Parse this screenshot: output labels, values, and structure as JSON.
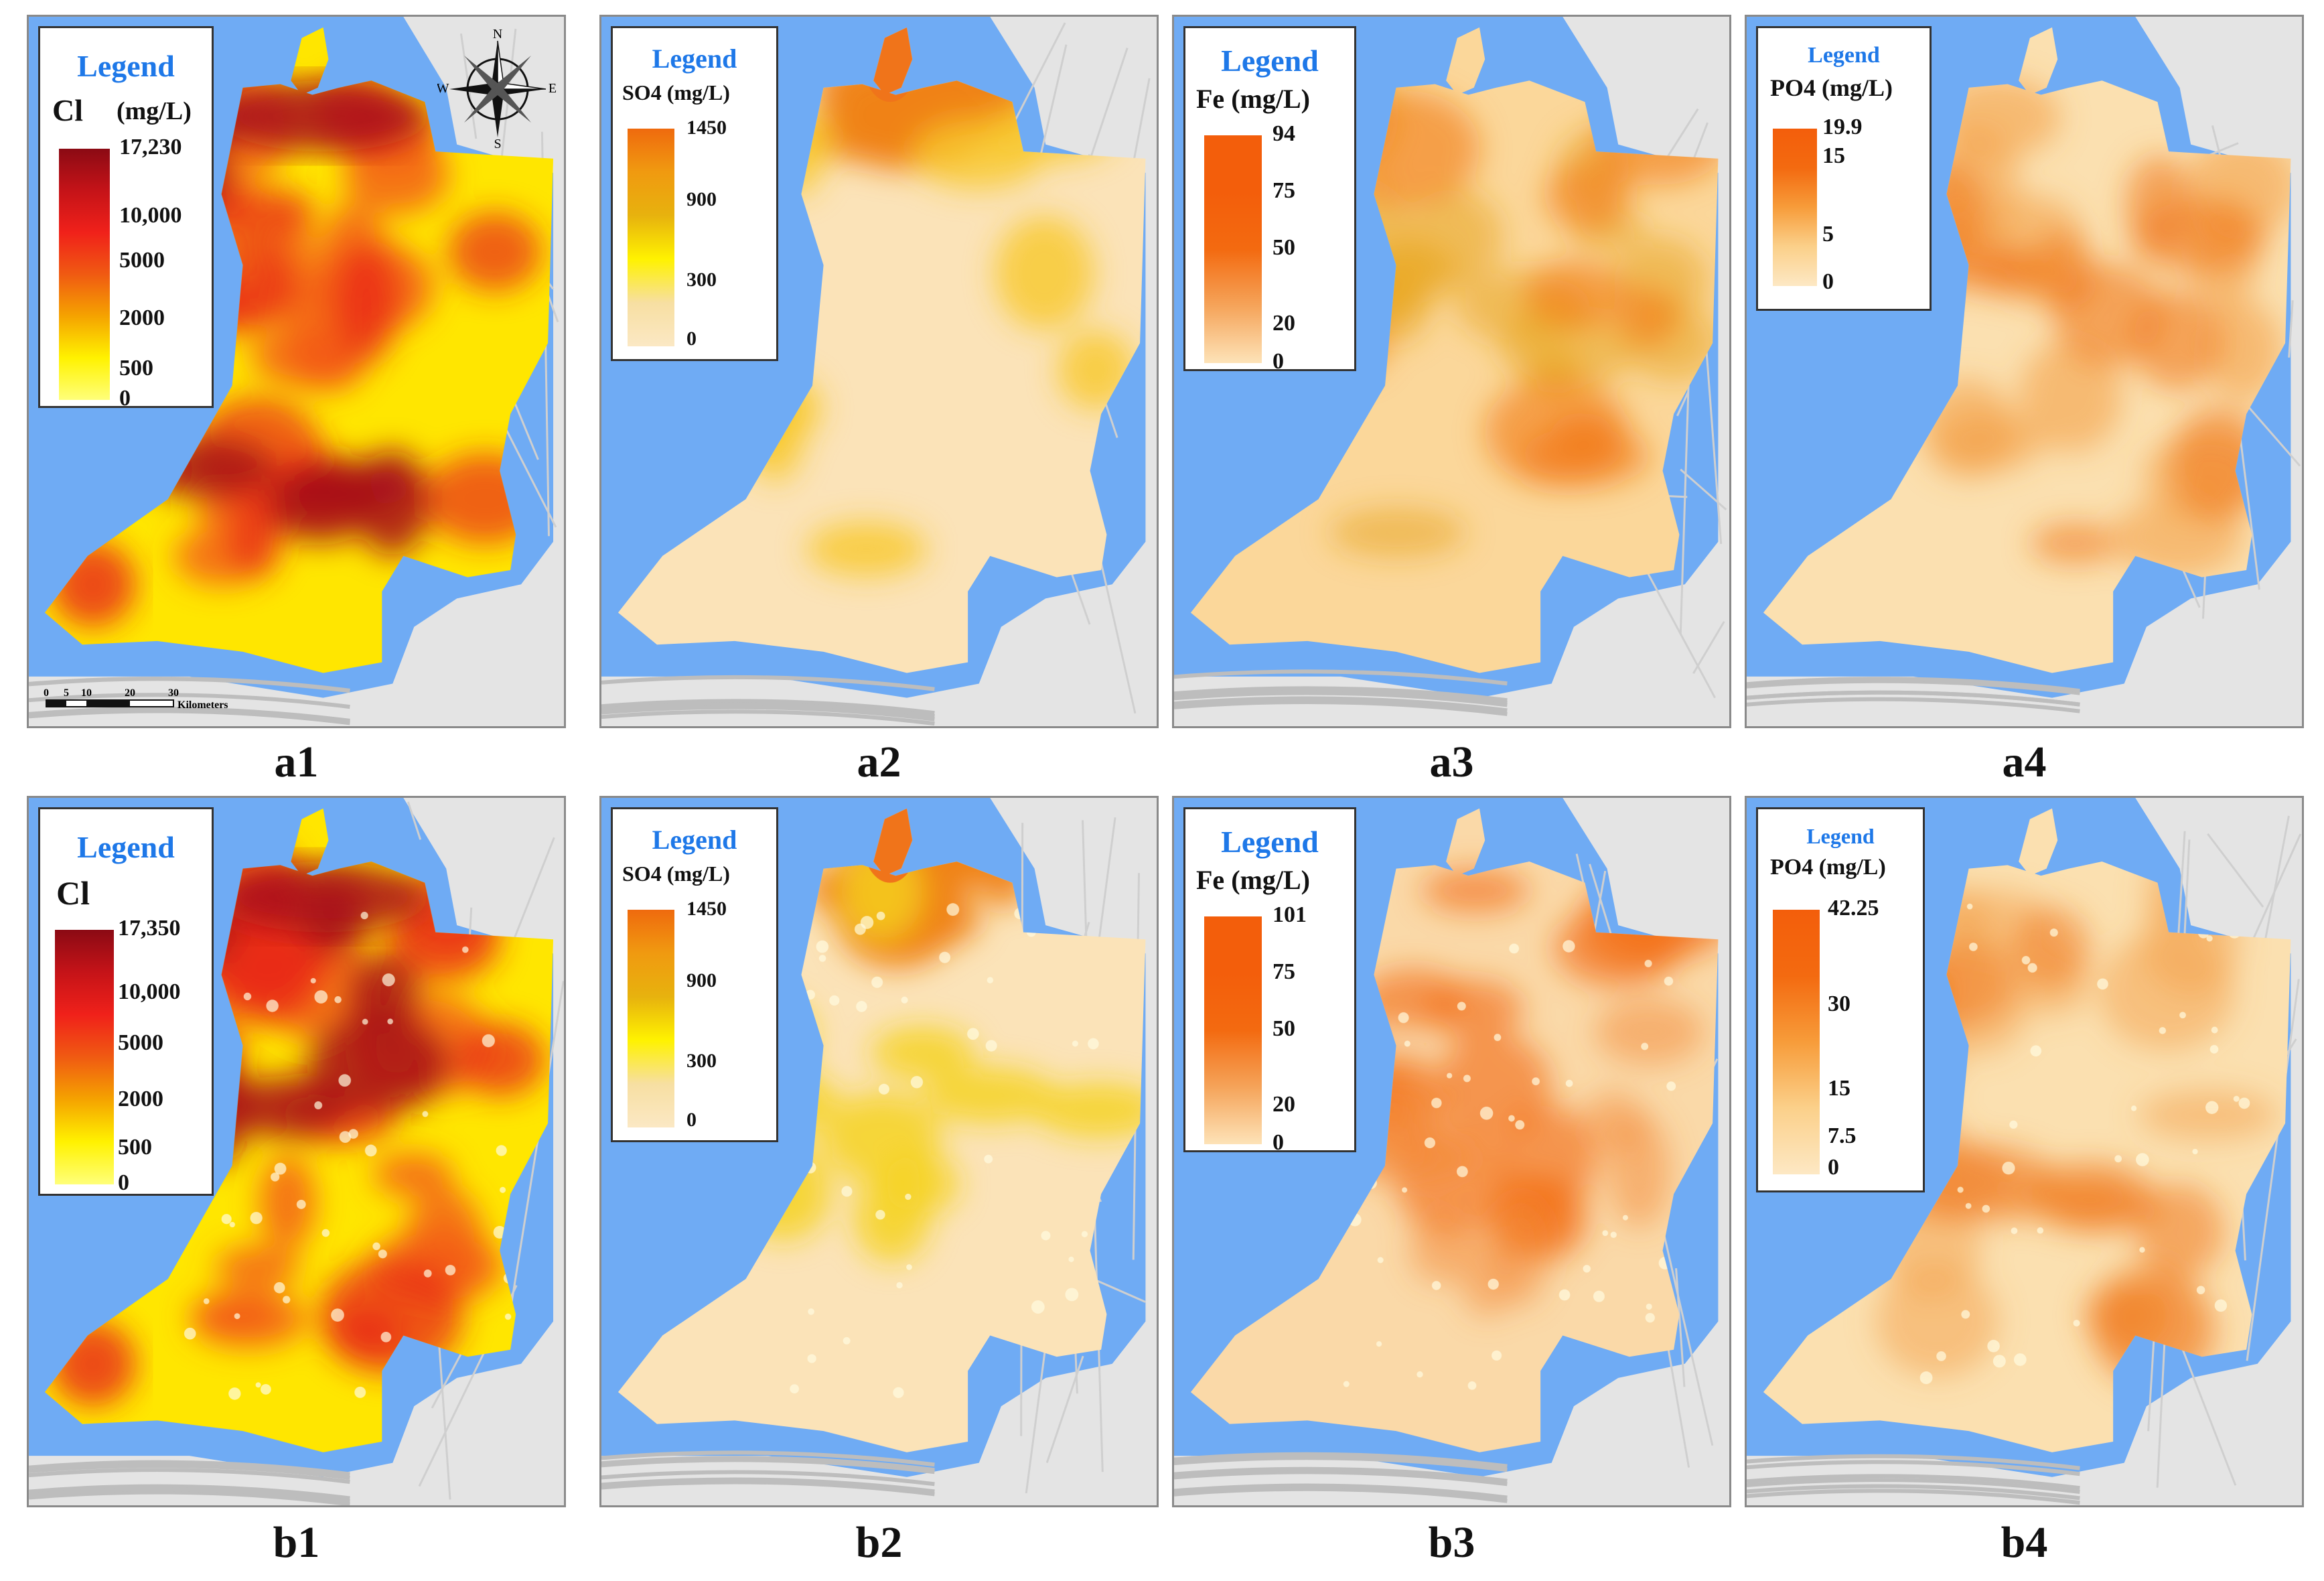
{
  "panels": [
    {
      "id": "a1",
      "caption": "a1",
      "legend_title": "Legend",
      "variable": "Cl",
      "unit": "(mg/L)",
      "ticks": [
        "17,230",
        "10,000",
        "5000",
        "2000",
        "500",
        "0"
      ],
      "scheme": "cl",
      "layout": "cl1",
      "compass": true,
      "scale": true
    },
    {
      "id": "a2",
      "caption": "a2",
      "legend_title": "Legend",
      "variable": "SO4 (mg/L)",
      "unit": "",
      "ticks": [
        "1450",
        "900",
        "300",
        "0"
      ],
      "scheme": "so4a",
      "layout": "so4"
    },
    {
      "id": "a3",
      "caption": "a3",
      "legend_title": "Legend",
      "variable": "Fe (mg/L)",
      "unit": "",
      "ticks": [
        "94",
        "75",
        "50",
        "20",
        "0"
      ],
      "scheme": "fea",
      "layout": "fe"
    },
    {
      "id": "a4",
      "caption": "a4",
      "legend_title": "Legend",
      "variable": "PO4 (mg/L)",
      "unit": "",
      "ticks": [
        "19.9",
        "15",
        "5",
        "0"
      ],
      "scheme": "poa",
      "layout": "po4a"
    },
    {
      "id": "b1",
      "caption": "b1",
      "legend_title": "Legend",
      "variable": "Cl",
      "unit": "",
      "ticks": [
        "17,350",
        "10,000",
        "5000",
        "2000",
        "500",
        "0"
      ],
      "scheme": "clb",
      "layout": "cl2"
    },
    {
      "id": "b2",
      "caption": "b2",
      "legend_title": "Legend",
      "variable": "SO4 (mg/L)",
      "unit": "",
      "ticks": [
        "1450",
        "900",
        "300",
        "0"
      ],
      "scheme": "so4b",
      "layout": "so4"
    },
    {
      "id": "b3",
      "caption": "b3",
      "legend_title": "Legend",
      "variable": "Fe (mg/L)",
      "unit": "",
      "ticks": [
        "101",
        "75",
        "50",
        "20",
        "0"
      ],
      "scheme": "feb",
      "layout": "fe"
    },
    {
      "id": "b4",
      "caption": "b4",
      "legend_title": "Legend",
      "variable": "PO4 (mg/L)",
      "unit": "",
      "ticks": [
        "42.25",
        "30",
        "15",
        "7.5",
        "0"
      ],
      "scheme": "pob",
      "layout": "po4b"
    }
  ],
  "compass": {
    "n": "N",
    "s": "S",
    "e": "E",
    "w": "W"
  },
  "scalebar": {
    "ticks": [
      "0",
      "5",
      "10",
      "20",
      "30"
    ],
    "unit": "Kilometers"
  },
  "colors": {
    "sea": "#6fabf4",
    "land": "#e4e4e4",
    "border": "#8a8a8a",
    "legend_title": "#1e78e8"
  }
}
